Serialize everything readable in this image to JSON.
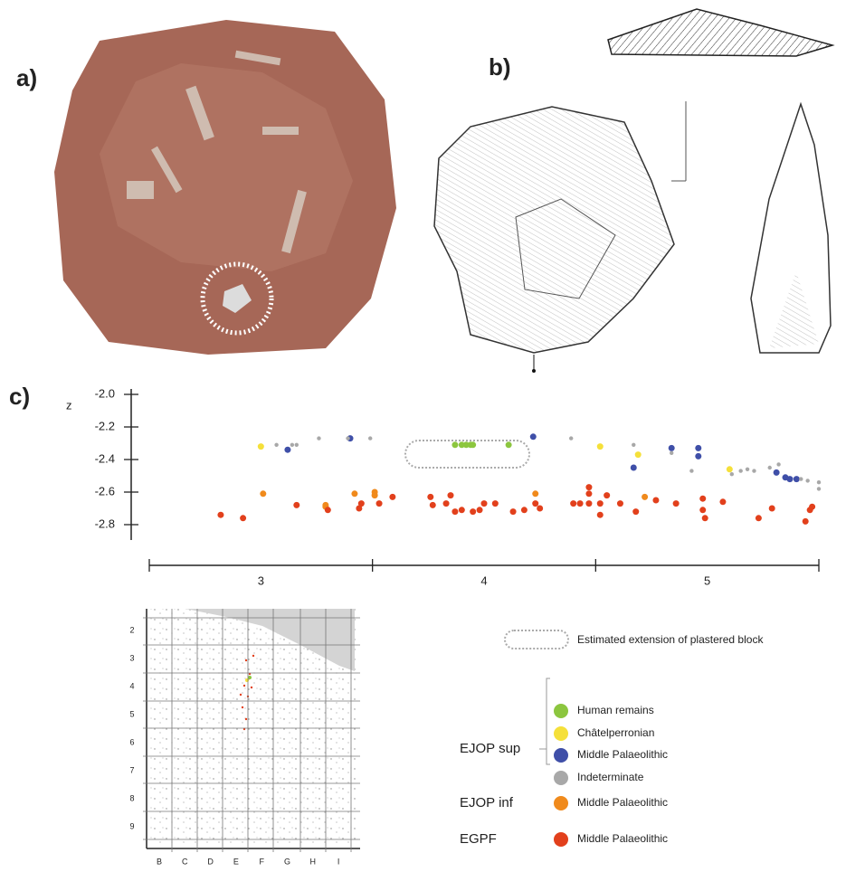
{
  "panels": [
    "a)",
    "b)",
    "c)"
  ],
  "chart_data": {
    "type": "scatter",
    "ylabel": "z",
    "xlim": [
      2.5,
      5.5
    ],
    "xticks": [
      3,
      4,
      5
    ],
    "xtick_marks": [
      2.5,
      3.5,
      4.5,
      5.5
    ],
    "ylim": [
      -2.9,
      -2.0
    ],
    "yticks": [
      {
        "value": -2.0,
        "label": "-2.0"
      },
      -2.2,
      -2.4,
      -2.6,
      -2.8
    ],
    "annotation": "Estimated extension of plastered block",
    "legend_groups": [
      "EJOP sup",
      "EJOP inf",
      "EGPF"
    ],
    "series": [
      {
        "name": "Human remains",
        "color": "#8cc63f",
        "x": [
          3.87,
          3.9,
          3.92,
          3.94,
          3.95,
          4.11
        ],
        "values": [
          -2.31,
          -2.31,
          -2.31,
          -2.31,
          -2.31,
          -2.31
        ]
      },
      {
        "name": "Châtelperronian",
        "color": "#f5e03a",
        "x": [
          3.0,
          4.52,
          4.69,
          5.1
        ],
        "values": [
          -2.32,
          -2.32,
          -2.37,
          -2.46
        ]
      },
      {
        "name": "Middle Palaeolithic",
        "color": "#3f4fa8",
        "x": [
          3.12,
          3.4,
          4.22,
          4.67,
          4.84,
          4.96,
          4.96,
          5.31,
          5.35,
          5.37,
          5.4
        ],
        "values": [
          -2.34,
          -2.27,
          -2.26,
          -2.45,
          -2.33,
          -2.38,
          -2.33,
          -2.48,
          -2.51,
          -2.52,
          -2.52
        ]
      },
      {
        "name": "Indeterminate",
        "color": "#a8a8a8",
        "x": [
          3.07,
          3.14,
          3.16,
          3.26,
          3.39,
          3.49,
          4.39,
          4.67,
          4.84,
          4.93,
          5.11,
          5.15,
          5.18,
          5.21,
          5.28,
          5.32,
          5.42,
          5.45,
          5.5,
          5.5
        ],
        "values": [
          -2.31,
          -2.31,
          -2.31,
          -2.27,
          -2.27,
          -2.27,
          -2.27,
          -2.31,
          -2.36,
          -2.47,
          -2.49,
          -2.47,
          -2.46,
          -2.47,
          -2.45,
          -2.43,
          -2.52,
          -2.53,
          -2.54,
          -2.58
        ]
      },
      {
        "name": "Middle Palaeolithic",
        "color": "#f08a1c",
        "x": [
          3.01,
          3.29,
          3.29,
          3.42,
          3.51,
          3.51,
          4.23,
          4.72
        ],
        "values": [
          -2.61,
          -2.68,
          -2.69,
          -2.61,
          -2.6,
          -2.62,
          -2.61,
          -2.63
        ]
      },
      {
        "name": "Middle Palaeolithic",
        "color": "#e2401c",
        "x": [
          2.82,
          2.92,
          3.16,
          3.3,
          3.44,
          3.45,
          3.53,
          3.59,
          3.76,
          3.77,
          3.83,
          3.85,
          3.87,
          3.9,
          3.95,
          3.98,
          4.0,
          4.05,
          4.13,
          4.18,
          4.23,
          4.25,
          4.4,
          4.43,
          4.47,
          4.47,
          4.47,
          4.52,
          4.52,
          4.55,
          4.61,
          4.68,
          4.77,
          4.86,
          4.98,
          4.98,
          4.99,
          5.07,
          5.23,
          5.29,
          5.44,
          5.46,
          5.47
        ],
        "values": [
          -2.74,
          -2.76,
          -2.68,
          -2.71,
          -2.7,
          -2.67,
          -2.67,
          -2.63,
          -2.63,
          -2.68,
          -2.67,
          -2.62,
          -2.72,
          -2.71,
          -2.72,
          -2.71,
          -2.67,
          -2.67,
          -2.72,
          -2.71,
          -2.67,
          -2.7,
          -2.67,
          -2.67,
          -2.67,
          -2.61,
          -2.57,
          -2.67,
          -2.74,
          -2.62,
          -2.67,
          -2.72,
          -2.65,
          -2.67,
          -2.64,
          -2.71,
          -2.76,
          -2.66,
          -2.76,
          -2.7,
          -2.78,
          -2.71,
          -2.69
        ]
      }
    ]
  },
  "map": {
    "rows": [
      "2",
      "3",
      "4",
      "5",
      "6",
      "7",
      "8",
      "9"
    ],
    "columns": [
      "B",
      "C",
      "D",
      "E",
      "F",
      "G",
      "H",
      "I"
    ]
  }
}
